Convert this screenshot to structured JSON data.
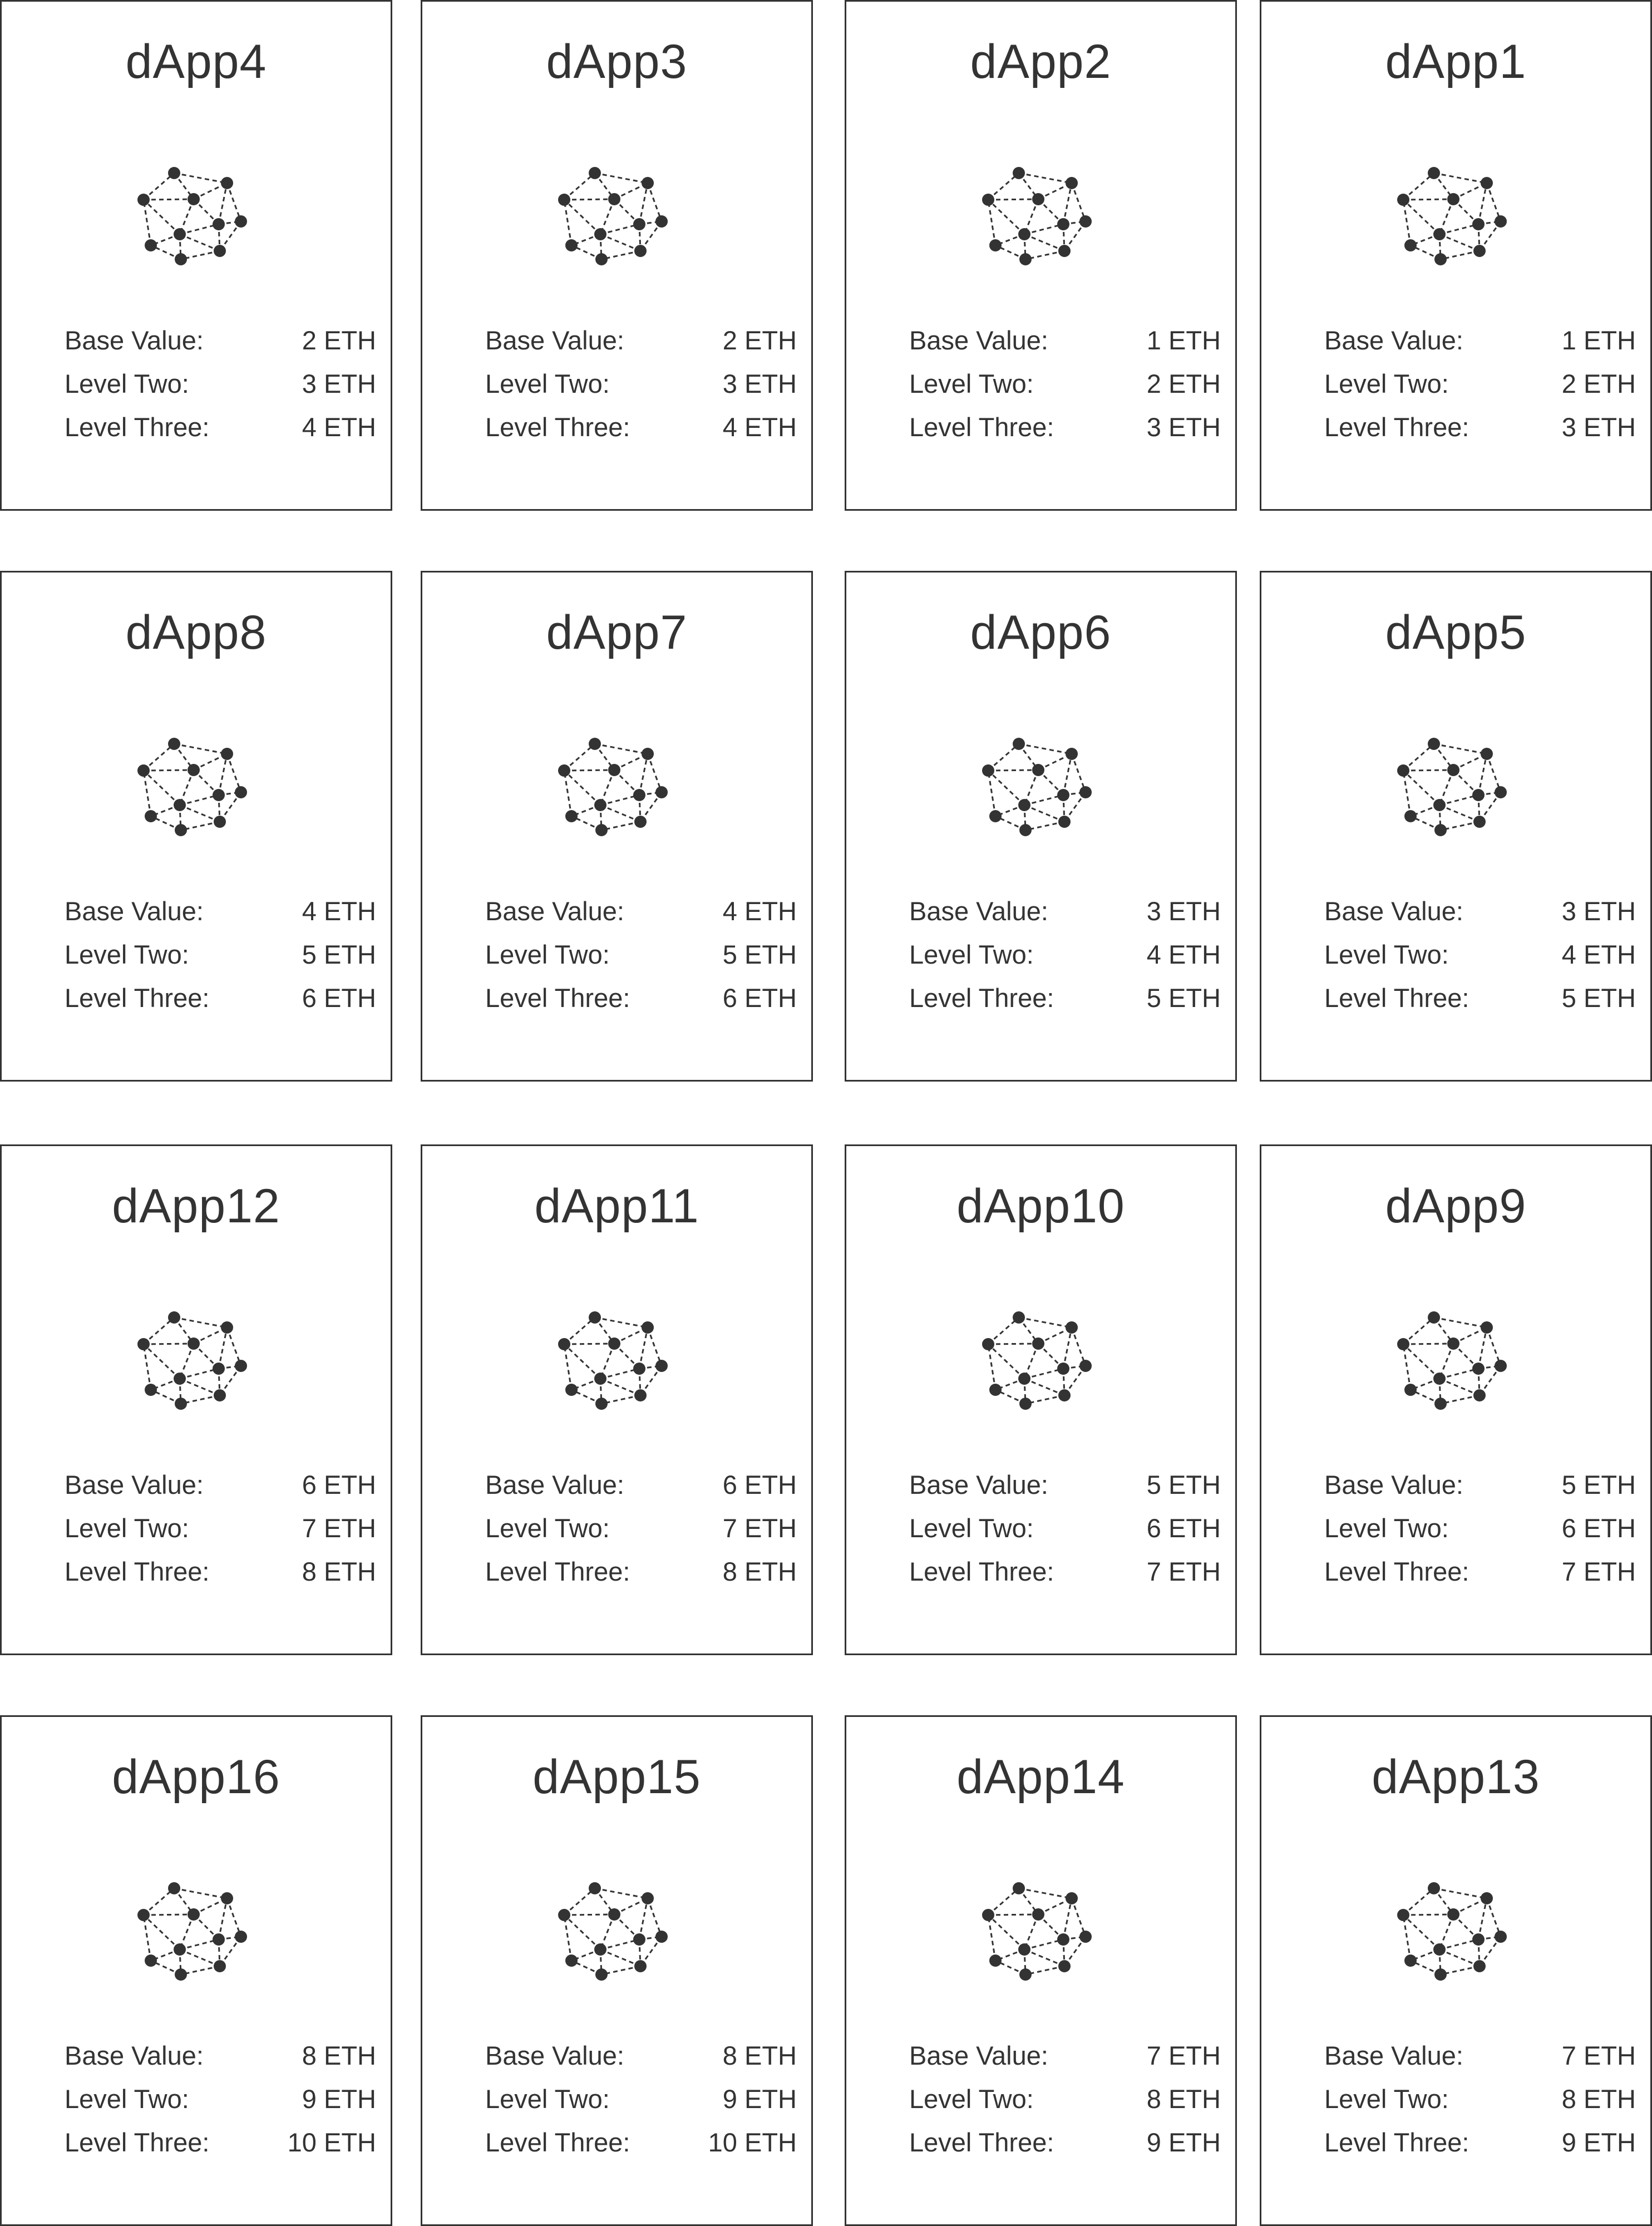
{
  "cards": [
    {
      "title": "dApp4",
      "rows": [
        {
          "label": "Base Value:",
          "value": "2 ETH"
        },
        {
          "label": "Level Two:",
          "value": "3 ETH"
        },
        {
          "label": "Level Three:",
          "value": "4 ETH"
        }
      ]
    },
    {
      "title": "dApp3",
      "rows": [
        {
          "label": "Base Value:",
          "value": "2 ETH"
        },
        {
          "label": "Level Two:",
          "value": "3 ETH"
        },
        {
          "label": "Level Three:",
          "value": "4 ETH"
        }
      ]
    },
    {
      "title": "dApp2",
      "rows": [
        {
          "label": "Base Value:",
          "value": "1 ETH"
        },
        {
          "label": "Level Two:",
          "value": "2 ETH"
        },
        {
          "label": "Level Three:",
          "value": "3 ETH"
        }
      ]
    },
    {
      "title": "dApp1",
      "rows": [
        {
          "label": "Base Value:",
          "value": "1 ETH"
        },
        {
          "label": "Level Two:",
          "value": "2 ETH"
        },
        {
          "label": "Level Three:",
          "value": "3 ETH"
        }
      ]
    },
    {
      "title": "dApp8",
      "rows": [
        {
          "label": "Base Value:",
          "value": "4 ETH"
        },
        {
          "label": "Level Two:",
          "value": "5 ETH"
        },
        {
          "label": "Level Three:",
          "value": "6 ETH"
        }
      ]
    },
    {
      "title": "dApp7",
      "rows": [
        {
          "label": "Base Value:",
          "value": "4 ETH"
        },
        {
          "label": "Level Two:",
          "value": "5 ETH"
        },
        {
          "label": "Level Three:",
          "value": "6 ETH"
        }
      ]
    },
    {
      "title": "dApp6",
      "rows": [
        {
          "label": "Base Value:",
          "value": "3 ETH"
        },
        {
          "label": "Level Two:",
          "value": "4 ETH"
        },
        {
          "label": "Level Three:",
          "value": "5 ETH"
        }
      ]
    },
    {
      "title": "dApp5",
      "rows": [
        {
          "label": "Base Value:",
          "value": "3 ETH"
        },
        {
          "label": "Level Two:",
          "value": "4 ETH"
        },
        {
          "label": "Level Three:",
          "value": "5 ETH"
        }
      ]
    },
    {
      "title": "dApp12",
      "rows": [
        {
          "label": "Base Value:",
          "value": "6 ETH"
        },
        {
          "label": "Level Two:",
          "value": "7 ETH"
        },
        {
          "label": "Level Three:",
          "value": "8 ETH"
        }
      ]
    },
    {
      "title": "dApp11",
      "rows": [
        {
          "label": "Base Value:",
          "value": "6 ETH"
        },
        {
          "label": "Level Two:",
          "value": "7 ETH"
        },
        {
          "label": "Level Three:",
          "value": "8 ETH"
        }
      ]
    },
    {
      "title": "dApp10",
      "rows": [
        {
          "label": "Base Value:",
          "value": "5 ETH"
        },
        {
          "label": "Level Two:",
          "value": "6 ETH"
        },
        {
          "label": "Level Three:",
          "value": "7 ETH"
        }
      ]
    },
    {
      "title": "dApp9",
      "rows": [
        {
          "label": "Base Value:",
          "value": "5 ETH"
        },
        {
          "label": "Level Two:",
          "value": "6 ETH"
        },
        {
          "label": "Level Three:",
          "value": "7 ETH"
        }
      ]
    },
    {
      "title": "dApp16",
      "rows": [
        {
          "label": "Base Value:",
          "value": "8 ETH"
        },
        {
          "label": "Level Two:",
          "value": "9 ETH"
        },
        {
          "label": "Level Three:",
          "value": "10 ETH"
        }
      ]
    },
    {
      "title": "dApp15",
      "rows": [
        {
          "label": "Base Value:",
          "value": "8 ETH"
        },
        {
          "label": "Level Two:",
          "value": "9 ETH"
        },
        {
          "label": "Level Three:",
          "value": "10 ETH"
        }
      ]
    },
    {
      "title": "dApp14",
      "rows": [
        {
          "label": "Base Value:",
          "value": "7 ETH"
        },
        {
          "label": "Level Two:",
          "value": "8 ETH"
        },
        {
          "label": "Level Three:",
          "value": "9 ETH"
        }
      ]
    },
    {
      "title": "dApp13",
      "rows": [
        {
          "label": "Base Value:",
          "value": "7 ETH"
        },
        {
          "label": "Level Two:",
          "value": "8 ETH"
        },
        {
          "label": "Level Three:",
          "value": "9 ETH"
        }
      ]
    }
  ],
  "icon": "network-graph-icon",
  "colors": {
    "ink": "#333333",
    "background": "#ffffff"
  }
}
